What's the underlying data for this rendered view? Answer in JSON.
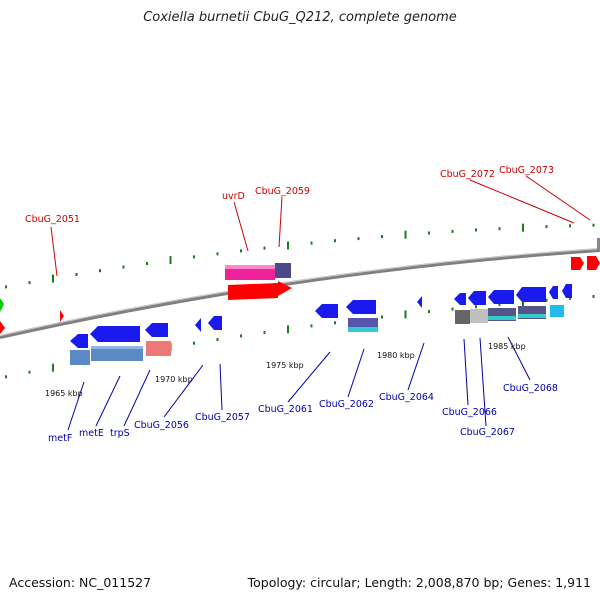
{
  "title": "Coxiella burnetii CbuG_Q212, complete genome",
  "footer": {
    "accession": "Accession: NC_011527",
    "summary": "Topology: circular; Length: 2,008,870 bp; Genes: 1,911"
  },
  "colors": {
    "backbone": "#808080",
    "minus_label": "#0000aa",
    "plus_label": "#cc0000",
    "minus_gene": "#1a1aee",
    "plus_gene": "#ff0000",
    "tick_marks": "#1e7a1e"
  },
  "scale_ticks": [
    "1965 kbp",
    "1970 kbp",
    "1975 kbp",
    "1980 kbp",
    "1985 kbp"
  ],
  "labels_minus": [
    "metF",
    "metE",
    "trpS",
    "CbuG_2056",
    "CbuG_2057",
    "CbuG_2061",
    "CbuG_2062",
    "CbuG_2064",
    "CbuG_2066",
    "CbuG_2067",
    "CbuG_2068"
  ],
  "labels_plus": [
    "CbuG_2051",
    "uvrD",
    "CbuG_2059",
    "CbuG_2072",
    "CbuG_2073"
  ]
}
